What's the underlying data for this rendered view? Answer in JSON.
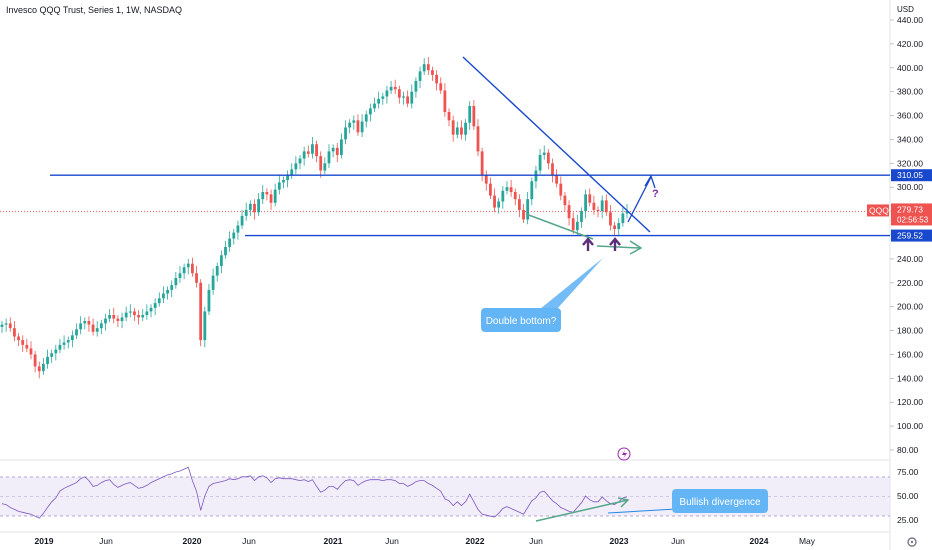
{
  "chart_title": "Invesco QQQ Trust, Series 1, 1W, NASDAQ",
  "currency": "USD",
  "symbol": "QQQ",
  "last_price": "279.73",
  "countdown": "02:56:53",
  "colors": {
    "up": "#26a69a",
    "down": "#ef5350",
    "trend": "#1848cc",
    "arrow_green": "#55a68a",
    "arrow_purple": "#5b2d7a",
    "rsi": "#7e57c2",
    "callout": "#64b5f6"
  },
  "chart_data": {
    "type": "candlestick",
    "price_axis": {
      "ticks": [
        80,
        100,
        120,
        140,
        160,
        180,
        200,
        220,
        240,
        260,
        280,
        300,
        320,
        340,
        360,
        380,
        400,
        420,
        440
      ],
      "tick_labels": [
        "80.00",
        "100.00",
        "120.00",
        "140.00",
        "160.00",
        "180.00",
        "200.00",
        "220.00",
        "240.00",
        "260.00",
        "280.00",
        "300.00",
        "320.00",
        "340.00",
        "360.00",
        "380.00",
        "400.00",
        "420.00",
        "440.00"
      ]
    },
    "time_axis": {
      "labels": [
        "2019",
        "Jun",
        "2020",
        "Jun",
        "2021",
        "Jun",
        "2022",
        "Jun",
        "2023",
        "Jun",
        "2024",
        "May"
      ]
    },
    "horizontal_levels": [
      {
        "value": 310.05,
        "label": "310.05"
      },
      {
        "value": 259.52,
        "label": "259.52"
      }
    ],
    "current_price": 279.73,
    "closes": [
      185,
      186,
      182,
      175,
      172,
      168,
      165,
      160,
      150,
      146,
      152,
      158,
      161,
      164,
      168,
      170,
      172,
      176,
      181,
      186,
      188,
      185,
      179,
      182,
      186,
      190,
      193,
      190,
      188,
      191,
      195,
      196,
      193,
      191,
      193,
      196,
      199,
      203,
      207,
      211,
      214,
      218,
      224,
      228,
      233,
      236,
      228,
      220,
      172,
      196,
      214,
      226,
      234,
      243,
      250,
      257,
      262,
      268,
      276,
      281,
      286,
      279,
      290,
      296,
      294,
      287,
      298,
      304,
      306,
      310,
      315,
      320,
      324,
      330,
      328,
      336,
      326,
      314,
      320,
      330,
      333,
      327,
      340,
      350,
      354,
      356,
      346,
      355,
      361,
      366,
      370,
      374,
      376,
      381,
      384,
      382,
      375,
      376,
      370,
      380,
      389,
      397,
      403,
      398,
      394,
      387,
      381,
      363,
      356,
      344,
      350,
      344,
      354,
      368,
      351,
      330,
      310,
      303,
      293,
      283,
      288,
      297,
      300,
      296,
      290,
      281,
      273,
      290,
      305,
      314,
      327,
      329,
      320,
      310,
      303,
      293,
      285,
      274,
      264,
      271,
      280,
      294,
      287,
      281,
      280,
      289,
      279,
      268,
      265,
      270,
      278,
      280
    ],
    "annotations": [
      {
        "type": "text",
        "text": "?"
      },
      {
        "type": "callout",
        "text": "Double bottom?"
      },
      {
        "type": "callout",
        "text": "Bullish divergence"
      }
    ],
    "rsi": {
      "ticks": [
        25,
        50,
        75
      ],
      "tick_labels": [
        "25.00",
        "50.00",
        "75.00"
      ],
      "values": [
        42,
        41,
        38,
        36,
        34,
        33,
        32,
        31,
        29,
        27,
        32,
        38,
        44,
        48,
        55,
        58,
        60,
        62,
        64,
        68,
        70,
        66,
        60,
        61,
        64,
        66,
        67,
        62,
        59,
        61,
        63,
        64,
        61,
        58,
        59,
        61,
        64,
        66,
        68,
        70,
        72,
        73,
        75,
        76,
        78,
        80,
        66,
        55,
        35,
        50,
        60,
        63,
        64,
        65,
        66,
        68,
        67,
        68,
        70,
        70,
        71,
        66,
        70,
        71,
        69,
        64,
        68,
        69,
        68,
        68,
        68,
        67,
        66,
        67,
        65,
        67,
        60,
        54,
        56,
        60,
        60,
        57,
        62,
        66,
        67,
        66,
        61,
        64,
        66,
        67,
        67,
        67,
        66,
        67,
        67,
        66,
        63,
        63,
        60,
        62,
        65,
        66,
        66,
        63,
        61,
        58,
        55,
        47,
        45,
        40,
        44,
        40,
        44,
        52,
        44,
        36,
        31,
        30,
        29,
        28,
        32,
        37,
        39,
        37,
        35,
        33,
        31,
        38,
        45,
        48,
        54,
        55,
        50,
        45,
        42,
        38,
        36,
        34,
        33,
        38,
        43,
        50,
        46,
        44,
        44,
        49,
        45,
        42,
        41,
        44,
        48,
        49
      ]
    }
  }
}
